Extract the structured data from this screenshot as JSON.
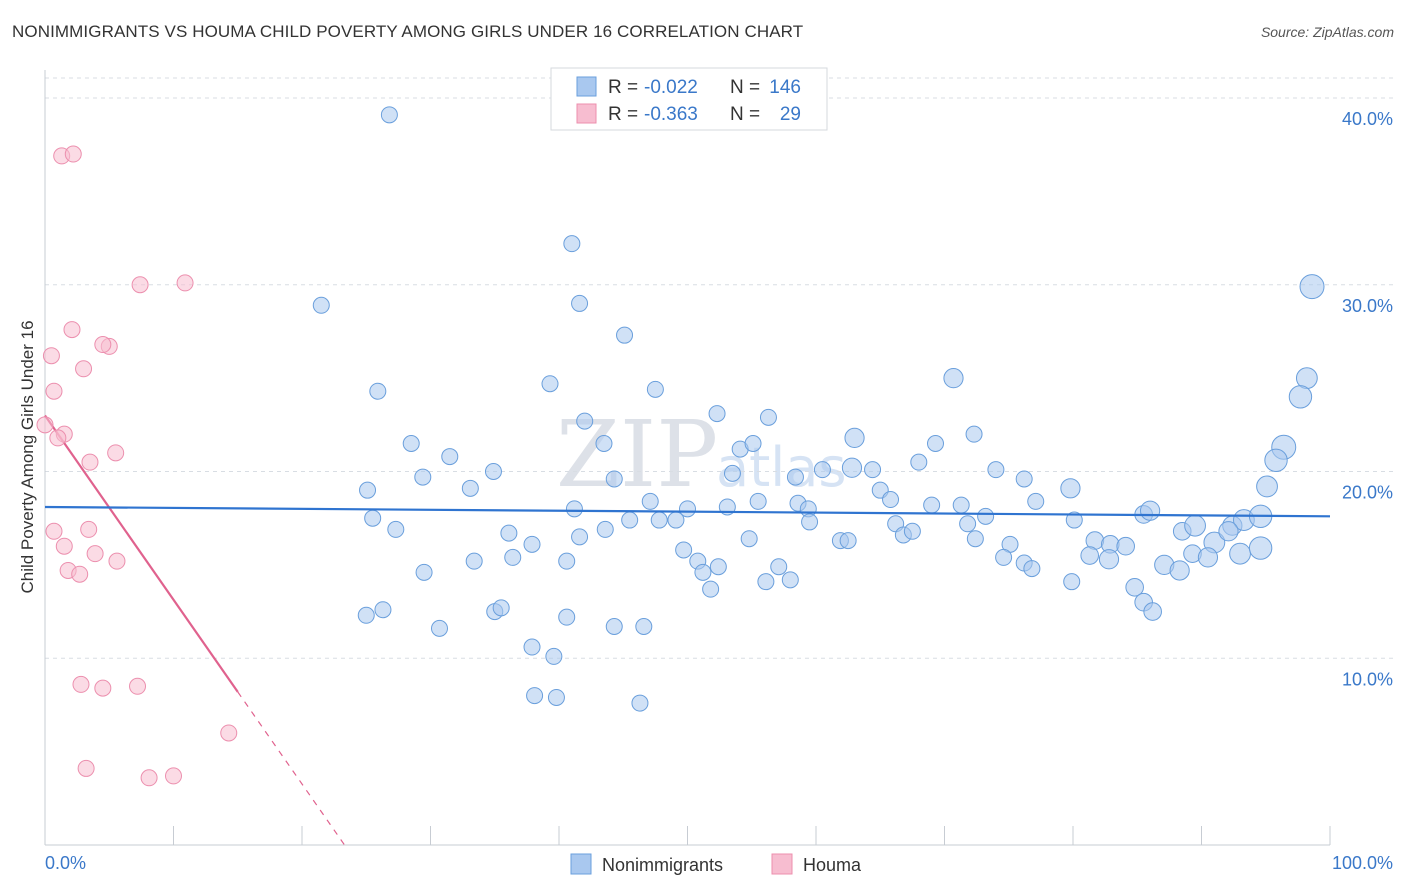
{
  "title": "NONIMMIGRANTS VS HOUMA CHILD POVERTY AMONG GIRLS UNDER 16 CORRELATION CHART",
  "source": "Source: ZipAtlas.com",
  "watermark": {
    "zip": "ZIP",
    "atlas": "atlas"
  },
  "colors": {
    "blue_fill": "#a9c8ef",
    "blue_stroke": "#6a9fdc",
    "blue_line": "#2f74d0",
    "pink_fill": "#f7bdd0",
    "pink_stroke": "#ec8fae",
    "pink_line": "#e0628e",
    "grid": "#d8dde3",
    "axis_text": "#3a78c9"
  },
  "legend": {
    "r_label": "R =",
    "n_label": "N =",
    "series": [
      {
        "name": "Nonimmigrants",
        "r": "-0.022",
        "n": "146",
        "color": "blue"
      },
      {
        "name": "Houma",
        "r": "-0.363",
        "n": "29",
        "color": "pink"
      }
    ]
  },
  "chart_data": {
    "type": "scatter",
    "title": "NONIMMIGRANTS VS HOUMA CHILD POVERTY AMONG GIRLS UNDER 16 CORRELATION CHART",
    "xlabel": "",
    "ylabel": "Child Poverty Among Girls Under 16",
    "xlim": [
      0,
      100
    ],
    "ylim": [
      0,
      41.5
    ],
    "x_tick_labels": [
      "0.0%",
      "100.0%"
    ],
    "y_ticks": [
      10,
      20,
      30,
      40
    ],
    "y_tick_labels": [
      "10.0%",
      "20.0%",
      "30.0%",
      "40.0%"
    ],
    "grid": true,
    "legend_position": "top-center",
    "series": [
      {
        "name": "Nonimmigrants",
        "r": -0.022,
        "n": 146,
        "trend": {
          "x": [
            0,
            100
          ],
          "y": [
            18.1,
            17.6
          ],
          "style": "solid"
        },
        "points": [
          [
            26.8,
            39.1,
            1
          ],
          [
            41.0,
            32.2,
            1
          ],
          [
            21.5,
            28.9,
            1
          ],
          [
            41.6,
            29.0,
            1
          ],
          [
            45.1,
            27.3,
            1
          ],
          [
            25.9,
            24.3,
            1
          ],
          [
            39.3,
            24.7,
            1
          ],
          [
            47.5,
            24.4,
            1
          ],
          [
            70.7,
            25.0,
            1.2
          ],
          [
            98.6,
            29.9,
            1.5
          ],
          [
            98.2,
            25.0,
            1.3
          ],
          [
            97.7,
            24.0,
            1.4
          ],
          [
            42.0,
            22.7,
            1
          ],
          [
            52.3,
            23.1,
            1
          ],
          [
            56.3,
            22.9,
            1
          ],
          [
            28.5,
            21.5,
            1
          ],
          [
            31.5,
            20.8,
            1
          ],
          [
            43.5,
            21.5,
            1
          ],
          [
            54.1,
            21.2,
            1
          ],
          [
            55.1,
            21.5,
            1
          ],
          [
            63.0,
            21.8,
            1.2
          ],
          [
            69.3,
            21.5,
            1
          ],
          [
            72.3,
            22.0,
            1
          ],
          [
            34.9,
            20.0,
            1
          ],
          [
            29.4,
            19.7,
            1
          ],
          [
            33.1,
            19.1,
            1
          ],
          [
            44.3,
            19.6,
            1
          ],
          [
            53.5,
            19.9,
            1
          ],
          [
            58.4,
            19.7,
            1
          ],
          [
            60.5,
            20.1,
            1
          ],
          [
            62.8,
            20.2,
            1.2
          ],
          [
            64.4,
            20.1,
            1
          ],
          [
            68.0,
            20.5,
            1
          ],
          [
            74.0,
            20.1,
            1
          ],
          [
            76.2,
            19.6,
            1
          ],
          [
            79.8,
            19.1,
            1.2
          ],
          [
            96.4,
            21.3,
            1.5
          ],
          [
            95.8,
            20.6,
            1.4
          ],
          [
            95.1,
            19.2,
            1.3
          ],
          [
            25.1,
            19.0,
            1
          ],
          [
            25.5,
            17.5,
            1
          ],
          [
            41.2,
            18.0,
            1
          ],
          [
            47.1,
            18.4,
            1
          ],
          [
            47.8,
            17.4,
            1
          ],
          [
            50.0,
            18.0,
            1
          ],
          [
            53.1,
            18.1,
            1
          ],
          [
            55.5,
            18.4,
            1
          ],
          [
            58.6,
            18.3,
            1
          ],
          [
            59.4,
            18.0,
            1
          ],
          [
            65.0,
            19.0,
            1
          ],
          [
            65.8,
            18.5,
            1
          ],
          [
            69.0,
            18.2,
            1
          ],
          [
            71.3,
            18.2,
            1
          ],
          [
            73.2,
            17.6,
            1
          ],
          [
            77.1,
            18.4,
            1
          ],
          [
            80.1,
            17.4,
            1
          ],
          [
            85.5,
            17.7,
            1.1
          ],
          [
            86.0,
            17.9,
            1.2
          ],
          [
            92.4,
            17.1,
            1.2
          ],
          [
            93.3,
            17.4,
            1.3
          ],
          [
            94.6,
            17.6,
            1.4
          ],
          [
            27.3,
            16.9,
            1
          ],
          [
            36.1,
            16.7,
            1
          ],
          [
            37.9,
            16.1,
            1
          ],
          [
            41.6,
            16.5,
            1
          ],
          [
            43.6,
            16.9,
            1
          ],
          [
            45.5,
            17.4,
            1
          ],
          [
            49.1,
            17.4,
            1
          ],
          [
            54.8,
            16.4,
            1
          ],
          [
            59.5,
            17.3,
            1
          ],
          [
            61.9,
            16.3,
            1
          ],
          [
            62.5,
            16.3,
            1
          ],
          [
            66.2,
            17.2,
            1
          ],
          [
            66.8,
            16.6,
            1
          ],
          [
            67.5,
            16.8,
            1
          ],
          [
            71.8,
            17.2,
            1
          ],
          [
            72.4,
            16.4,
            1
          ],
          [
            75.1,
            16.1,
            1
          ],
          [
            81.7,
            16.3,
            1.1
          ],
          [
            82.9,
            16.1,
            1.1
          ],
          [
            84.1,
            16.0,
            1.1
          ],
          [
            88.5,
            16.8,
            1.1
          ],
          [
            89.5,
            17.1,
            1.3
          ],
          [
            91.0,
            16.2,
            1.3
          ],
          [
            92.1,
            16.8,
            1.2
          ],
          [
            29.5,
            14.6,
            1
          ],
          [
            33.4,
            15.2,
            1
          ],
          [
            36.4,
            15.4,
            1
          ],
          [
            40.6,
            15.2,
            1
          ],
          [
            49.7,
            15.8,
            1
          ],
          [
            50.8,
            15.2,
            1
          ],
          [
            51.2,
            14.6,
            1
          ],
          [
            52.4,
            14.9,
            1
          ],
          [
            57.1,
            14.9,
            1
          ],
          [
            74.6,
            15.4,
            1
          ],
          [
            76.2,
            15.1,
            1
          ],
          [
            76.8,
            14.8,
            1
          ],
          [
            81.3,
            15.5,
            1.1
          ],
          [
            82.8,
            15.3,
            1.2
          ],
          [
            87.1,
            15.0,
            1.2
          ],
          [
            88.3,
            14.7,
            1.2
          ],
          [
            89.3,
            15.6,
            1.1
          ],
          [
            90.5,
            15.4,
            1.2
          ],
          [
            93.0,
            15.6,
            1.3
          ],
          [
            94.6,
            15.9,
            1.4
          ],
          [
            25.0,
            12.3,
            1
          ],
          [
            26.3,
            12.6,
            1
          ],
          [
            30.7,
            11.6,
            1
          ],
          [
            35.0,
            12.5,
            1
          ],
          [
            35.5,
            12.7,
            1
          ],
          [
            37.9,
            10.6,
            1
          ],
          [
            39.6,
            10.1,
            1
          ],
          [
            40.6,
            12.2,
            1
          ],
          [
            44.3,
            11.7,
            1
          ],
          [
            46.6,
            11.7,
            1
          ],
          [
            51.8,
            13.7,
            1
          ],
          [
            56.1,
            14.1,
            1
          ],
          [
            58.0,
            14.2,
            1
          ],
          [
            79.9,
            14.1,
            1
          ],
          [
            84.8,
            13.8,
            1.1
          ],
          [
            85.5,
            13.0,
            1.1
          ],
          [
            86.2,
            12.5,
            1.1
          ],
          [
            38.1,
            8.0,
            1
          ],
          [
            39.8,
            7.9,
            1
          ],
          [
            46.3,
            7.6,
            1
          ]
        ]
      },
      {
        "name": "Houma",
        "r": -0.363,
        "n": 29,
        "trend": {
          "x": [
            0,
            15.0
          ],
          "y": [
            23.0,
            8.2
          ],
          "dashed_to": [
            23.0,
            0
          ]
        },
        "points": [
          [
            1.3,
            36.9
          ],
          [
            2.2,
            37.0
          ],
          [
            7.4,
            30.0
          ],
          [
            10.9,
            30.1
          ],
          [
            2.1,
            27.6
          ],
          [
            5.0,
            26.7
          ],
          [
            4.5,
            26.8
          ],
          [
            0.5,
            26.2
          ],
          [
            3.0,
            25.5
          ],
          [
            0.7,
            24.3
          ],
          [
            0.0,
            22.5
          ],
          [
            1.5,
            22.0
          ],
          [
            1.0,
            21.8
          ],
          [
            5.5,
            21.0
          ],
          [
            3.5,
            20.5
          ],
          [
            0.7,
            16.8
          ],
          [
            3.4,
            16.9
          ],
          [
            1.5,
            16.0
          ],
          [
            3.9,
            15.6
          ],
          [
            5.6,
            15.2
          ],
          [
            1.8,
            14.7
          ],
          [
            2.7,
            14.5
          ],
          [
            2.8,
            8.6
          ],
          [
            4.5,
            8.4
          ],
          [
            7.2,
            8.5
          ],
          [
            14.3,
            6.0
          ],
          [
            3.2,
            4.1
          ],
          [
            8.1,
            3.6
          ],
          [
            10.0,
            3.7
          ]
        ]
      }
    ]
  }
}
